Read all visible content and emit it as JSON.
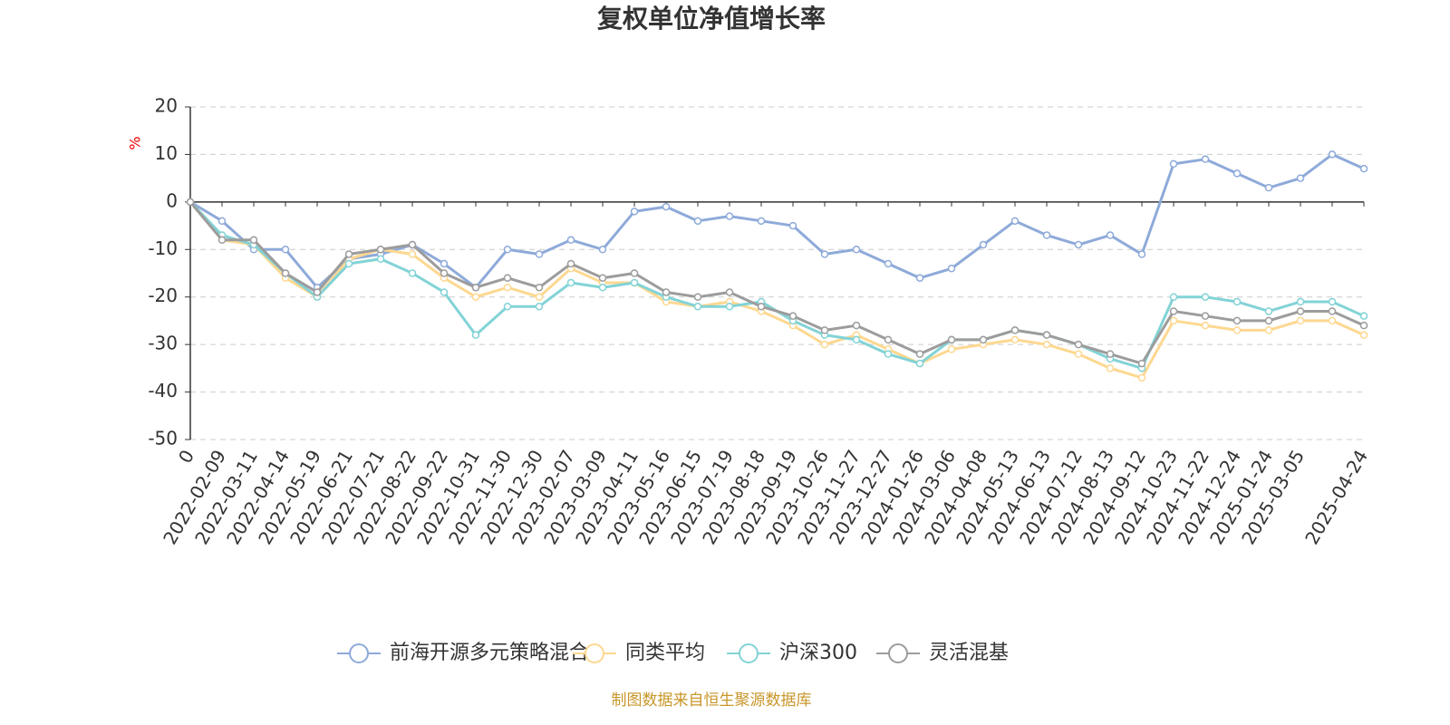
{
  "chart_data": {
    "type": "line",
    "title": "复权单位净值增长率",
    "y_label": "%",
    "source": "制图数据来自恒生聚源数据库",
    "categories": [
      "0",
      "2022-02-09",
      "2022-03-11",
      "2022-04-14",
      "2022-05-19",
      "2022-06-21",
      "2022-07-21",
      "2022-08-22",
      "2022-09-22",
      "2022-10-31",
      "2022-11-30",
      "2022-12-30",
      "2023-02-07",
      "2023-03-09",
      "2023-04-11",
      "2023-05-16",
      "2023-06-15",
      "2023-07-19",
      "2023-08-18",
      "2023-09-19",
      "2023-10-26",
      "2023-11-27",
      "2023-12-27",
      "2024-01-26",
      "2024-03-06",
      "2024-04-08",
      "2024-05-13",
      "2024-06-13",
      "2024-07-12",
      "2024-08-13",
      "2024-09-12",
      "2024-10-23",
      "2024-11-22",
      "2024-12-24",
      "2025-01-24",
      "2025-03-05",
      null,
      "2025-04-24"
    ],
    "series": [
      {
        "name": "前海开源多元策略混合A",
        "color": "#8eaad9",
        "values": [
          0,
          -4,
          -10,
          -10,
          -18,
          -12,
          -11,
          -9,
          -13,
          -18,
          -10,
          -11,
          -8,
          -10,
          -2,
          -1,
          -4,
          -3,
          -4,
          -5,
          -11,
          -10,
          -13,
          -16,
          -14,
          -9,
          -4,
          -7,
          -9,
          -7,
          -11,
          8,
          9,
          6,
          3,
          5,
          10,
          7
        ]
      },
      {
        "name": "同类平均",
        "color": "#fdd890",
        "values": [
          0,
          -8,
          -9,
          -16,
          -20,
          -12,
          -10,
          -11,
          -16,
          -20,
          -18,
          -20,
          -14,
          -17,
          -17,
          -21,
          -22,
          -21,
          -23,
          -26,
          -30,
          -28,
          -31,
          -34,
          -31,
          -30,
          -29,
          -30,
          -32,
          -35,
          -37,
          -25,
          -26,
          -27,
          -27,
          -25,
          -25,
          -28
        ]
      },
      {
        "name": "沪深300",
        "color": "#82d3d6",
        "values": [
          0,
          -7,
          -9,
          -15,
          -20,
          -13,
          -12,
          -15,
          -19,
          -28,
          -22,
          -22,
          -17,
          -18,
          -17,
          -20,
          -22,
          -22,
          -21,
          -25,
          -28,
          -29,
          -32,
          -34,
          -29,
          -29,
          -27,
          -28,
          -30,
          -33,
          -35,
          -20,
          -20,
          -21,
          -23,
          -21,
          -21,
          -24
        ]
      },
      {
        "name": "灵活混基",
        "color": "#9c9c9c",
        "values": [
          0,
          -8,
          -8,
          -15,
          -19,
          -11,
          -10,
          -9,
          -15,
          -18,
          -16,
          -18,
          -13,
          -16,
          -15,
          -19,
          -20,
          -19,
          -22,
          -24,
          -27,
          -26,
          -29,
          -32,
          -29,
          -29,
          -27,
          -28,
          -30,
          -32,
          -34,
          -23,
          -24,
          -25,
          -25,
          -23,
          -23,
          -26
        ]
      }
    ],
    "ylim": [
      -50,
      20
    ],
    "yticks": [
      20,
      10,
      0,
      -10,
      -20,
      -30,
      -40,
      -50
    ],
    "grid": true,
    "legend": "bottom"
  }
}
